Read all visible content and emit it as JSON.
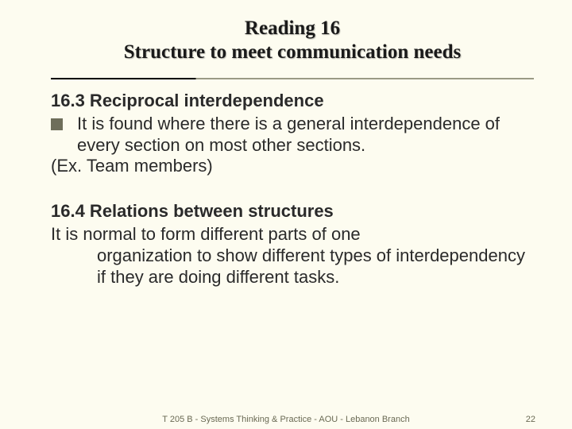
{
  "title": {
    "line1": "Reading 16",
    "line2": "Structure to meet communication needs"
  },
  "section1": {
    "heading": "16.3 Reciprocal interdependence",
    "bullet": "It is found where there is a general interdependence of every section on most other sections.",
    "example": "(Ex. Team members)"
  },
  "section2": {
    "heading": "16.4 Relations between structures",
    "lead": "It is normal to form different parts of one",
    "cont": "organization to show different types of interdependency if they are doing different tasks."
  },
  "footer": {
    "center": "T 205 B - Systems Thinking & Practice - AOU - Lebanon Branch",
    "page": "22"
  },
  "colors": {
    "background": "#fdfcf0",
    "text": "#2a2a2a",
    "bullet_square": "#6e6e5a",
    "rule_dark": "#000000",
    "rule_light": "#9a9a85",
    "footer_text": "#6a6a54"
  },
  "typography": {
    "title_font": "Times New Roman",
    "title_size_pt": 19,
    "body_font": "Arial",
    "body_size_pt": 17,
    "footer_size_pt": 8
  }
}
